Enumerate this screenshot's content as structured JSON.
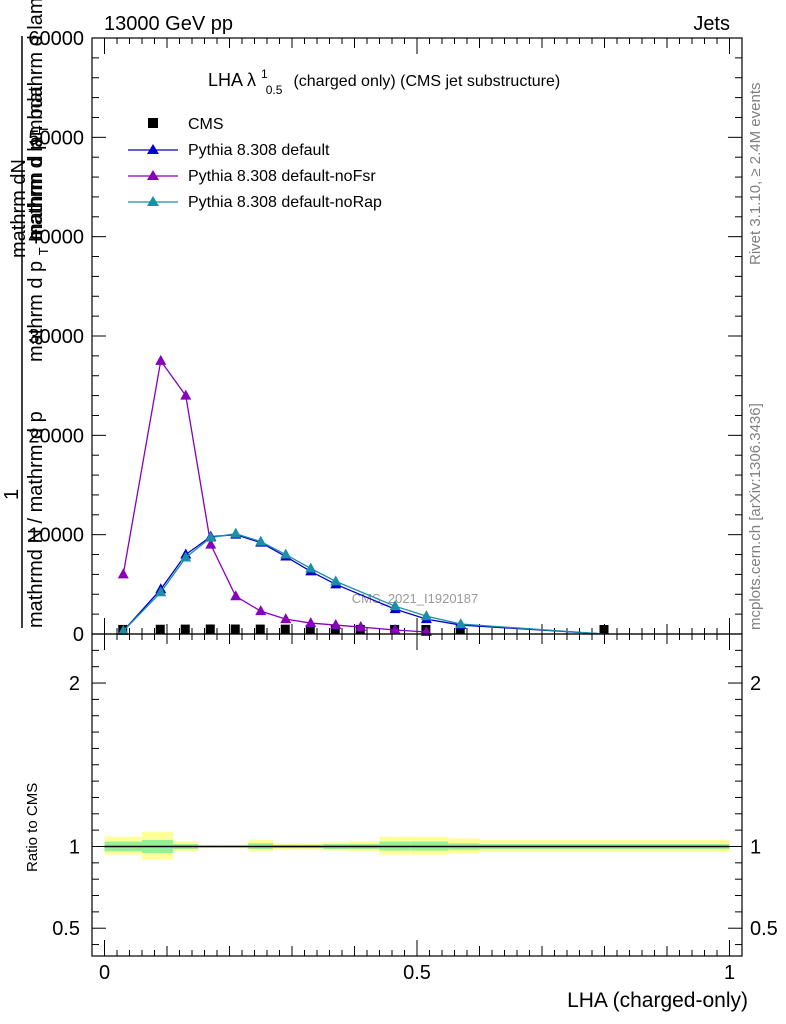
{
  "header": {
    "left": "13000 GeV pp",
    "right": "Jets"
  },
  "side": {
    "rivet": "Rivet 3.1.10, ≥ 2.4M events",
    "mcplots": "mcplots.cern.ch [arXiv:1306.3436]"
  },
  "watermark": "CMS_2021_I1920187",
  "chart_data": [
    {
      "type": "line",
      "title_main": "LHA λ",
      "title_sup": "1",
      "title_sub": "0.5",
      "title_rest": "(charged only) (CMS jet substructure)",
      "ylabel_num_prefix": "1",
      "ylabel_line1": "mathrm dN",
      "ylabel_line2": "mathrm d p",
      "ylabel_line2b": "T",
      "ylabel_line2c": "mathrm d lambda",
      "ylabel_line3": "mathrm d p",
      "ylabel_line3b": "T",
      "ylabel_line3c": "mathrm d lambda",
      "ylabel_den": "mathrmd N / mathrm d p",
      "xlim": [
        -0.02,
        1.02
      ],
      "ylim": [
        0,
        60000
      ],
      "yticks": [
        0,
        10000,
        20000,
        30000,
        40000,
        50000,
        60000
      ],
      "ytick_labels": [
        "0",
        "10000",
        "20000",
        "30000",
        "40000",
        "50000",
        "60000"
      ],
      "legend": [
        "CMS",
        "Pythia 8.308 default",
        "Pythia 8.308 default-noFsr",
        "Pythia 8.308 default-noRap"
      ],
      "series": [
        {
          "name": "CMS",
          "color": "#000000",
          "marker": "square",
          "x": [
            0.03,
            0.09,
            0.13,
            0.17,
            0.21,
            0.25,
            0.29,
            0.33,
            0.37,
            0.41,
            0.465,
            0.515,
            0.57,
            0.8
          ],
          "y": [
            8,
            25,
            40,
            50,
            48,
            42,
            33,
            24,
            17,
            11,
            6,
            3,
            1.5,
            0.2
          ]
        },
        {
          "name": "Pythia 8.308 default",
          "color": "#0000cc",
          "marker": "triangle",
          "x": [
            0.03,
            0.09,
            0.13,
            0.17,
            0.21,
            0.25,
            0.29,
            0.33,
            0.37,
            0.465,
            0.515,
            0.57,
            0.8
          ],
          "y": [
            300,
            4500,
            8000,
            9800,
            10000,
            9200,
            7800,
            6300,
            5000,
            2500,
            1500,
            900,
            0
          ]
        },
        {
          "name": "Pythia 8.308 default-noFsr",
          "color": "#8800bb",
          "marker": "triangle",
          "x": [
            0.03,
            0.09,
            0.13,
            0.17,
            0.21,
            0.25,
            0.29,
            0.33,
            0.37,
            0.41,
            0.465,
            0.515
          ],
          "y": [
            6000,
            27500,
            24000,
            9000,
            3800,
            2300,
            1500,
            1100,
            900,
            700,
            400,
            200
          ]
        },
        {
          "name": "Pythia 8.308 default-noRap",
          "color": "#1b8ea8",
          "marker": "triangle",
          "x": [
            0.03,
            0.09,
            0.13,
            0.17,
            0.21,
            0.25,
            0.29,
            0.33,
            0.37,
            0.465,
            0.515,
            0.57,
            0.8
          ],
          "y": [
            300,
            4200,
            7700,
            9700,
            10100,
            9300,
            8000,
            6600,
            5300,
            2800,
            1800,
            1000,
            0
          ]
        }
      ]
    },
    {
      "type": "line",
      "ylabel": "Ratio to CMS",
      "xlabel": "LHA (charged-only)",
      "xlim": [
        -0.02,
        1.02
      ],
      "ylim": [
        0.33,
        2.3
      ],
      "xticks": [
        0,
        0.5,
        1
      ],
      "xtick_labels": [
        "0",
        "0.5",
        "1"
      ],
      "yticks": [
        0.5,
        1,
        2
      ],
      "ytick_labels": [
        "0.5",
        "1",
        "2"
      ],
      "bands": [
        {
          "x0": 0.0,
          "x1": 0.06,
          "yellow": [
            0.95,
            1.06
          ],
          "green": [
            0.97,
            1.03
          ]
        },
        {
          "x0": 0.06,
          "x1": 0.11,
          "yellow": [
            0.92,
            1.09
          ],
          "green": [
            0.96,
            1.04
          ]
        },
        {
          "x0": 0.11,
          "x1": 0.15,
          "yellow": [
            0.97,
            1.03
          ],
          "green": [
            0.985,
            1.015
          ]
        },
        {
          "x0": 0.15,
          "x1": 0.19,
          "yellow": [
            0.99,
            1.01
          ],
          "green": [
            0.995,
            1.005
          ]
        },
        {
          "x0": 0.19,
          "x1": 0.23,
          "yellow": [
            0.99,
            1.01
          ],
          "green": [
            0.995,
            1.005
          ]
        },
        {
          "x0": 0.23,
          "x1": 0.27,
          "yellow": [
            0.97,
            1.04
          ],
          "green": [
            0.985,
            1.02
          ]
        },
        {
          "x0": 0.27,
          "x1": 0.31,
          "yellow": [
            0.98,
            1.02
          ],
          "green": [
            0.99,
            1.01
          ]
        },
        {
          "x0": 0.31,
          "x1": 0.35,
          "yellow": [
            0.98,
            1.02
          ],
          "green": [
            0.99,
            1.01
          ]
        },
        {
          "x0": 0.35,
          "x1": 0.39,
          "yellow": [
            0.975,
            1.025
          ],
          "green": [
            0.985,
            1.015
          ]
        },
        {
          "x0": 0.39,
          "x1": 0.44,
          "yellow": [
            0.97,
            1.03
          ],
          "green": [
            0.985,
            1.015
          ]
        },
        {
          "x0": 0.44,
          "x1": 0.49,
          "yellow": [
            0.95,
            1.06
          ],
          "green": [
            0.975,
            1.03
          ]
        },
        {
          "x0": 0.49,
          "x1": 0.55,
          "yellow": [
            0.95,
            1.06
          ],
          "green": [
            0.975,
            1.03
          ]
        },
        {
          "x0": 0.55,
          "x1": 0.6,
          "yellow": [
            0.96,
            1.05
          ],
          "green": [
            0.98,
            1.02
          ]
        },
        {
          "x0": 0.6,
          "x1": 1.0,
          "yellow": [
            0.965,
            1.04
          ],
          "green": [
            0.985,
            1.015
          ]
        }
      ],
      "ref_line": 1
    }
  ]
}
